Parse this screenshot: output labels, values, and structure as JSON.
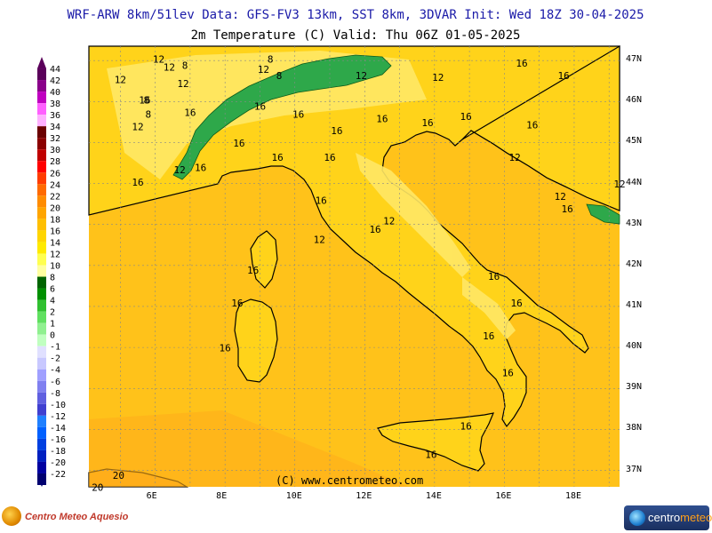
{
  "header": {
    "line1": "WRF-ARW 8km/51lev  Data: GFS-FV3 13km, SST 8km, 3DVAR  Init: Wed 18Z 30-04-2025",
    "line2": "2m Temperature (C)  Valid: Thu 06Z 01-05-2025"
  },
  "colorbar": {
    "levels": [
      {
        "label": "44",
        "color": "#5a005a"
      },
      {
        "label": "42",
        "color": "#8a008a"
      },
      {
        "label": "40",
        "color": "#c000c0"
      },
      {
        "label": "38",
        "color": "#ff60ff"
      },
      {
        "label": "36",
        "color": "#ffb0ff"
      },
      {
        "label": "34",
        "color": "#6b0000"
      },
      {
        "label": "32",
        "color": "#8b0000"
      },
      {
        "label": "30",
        "color": "#c00000"
      },
      {
        "label": "28",
        "color": "#ff0000"
      },
      {
        "label": "26",
        "color": "#ff3c00"
      },
      {
        "label": "24",
        "color": "#ff6a00"
      },
      {
        "label": "22",
        "color": "#ff8c00"
      },
      {
        "label": "20",
        "color": "#ffa500"
      },
      {
        "label": "18",
        "color": "#ffbf00"
      },
      {
        "label": "16",
        "color": "#ffd500"
      },
      {
        "label": "14",
        "color": "#ffea00"
      },
      {
        "label": "12",
        "color": "#ffff50"
      },
      {
        "label": "10",
        "color": "#ffffa0"
      },
      {
        "label": "8",
        "color": "#006400"
      },
      {
        "label": "6",
        "color": "#009000"
      },
      {
        "label": "4",
        "color": "#30c030"
      },
      {
        "label": "2",
        "color": "#60e060"
      },
      {
        "label": "1",
        "color": "#90f090"
      },
      {
        "label": "0",
        "color": "#c0ffc0"
      },
      {
        "label": "-1",
        "color": "#e0e0ff"
      },
      {
        "label": "-2",
        "color": "#c8c8ff"
      },
      {
        "label": "-4",
        "color": "#a0a0ff"
      },
      {
        "label": "-6",
        "color": "#8080f0"
      },
      {
        "label": "-8",
        "color": "#6060e0"
      },
      {
        "label": "-10",
        "color": "#4040d0"
      },
      {
        "label": "-12",
        "color": "#2080ff"
      },
      {
        "label": "-14",
        "color": "#0060ff"
      },
      {
        "label": "-16",
        "color": "#0040e0"
      },
      {
        "label": "-18",
        "color": "#0020c0"
      },
      {
        "label": "-20",
        "color": "#0000a0"
      },
      {
        "label": "-22",
        "color": "#000070"
      }
    ]
  },
  "map": {
    "lon_labels": [
      "6E",
      "8E",
      "10E",
      "12E",
      "14E",
      "16E",
      "18E"
    ],
    "lat_labels": [
      "47N",
      "46N",
      "45N",
      "44N",
      "43N",
      "42N",
      "41N",
      "40N",
      "39N",
      "38N",
      "37N"
    ],
    "watermark": "(C) www.centrometeo.com",
    "colors": {
      "sea": "#ffc21a",
      "land": "#ffd31a",
      "alps_green": "#2ea84a",
      "cold_yellow": "#ffe866",
      "warm_orange": "#ffae1a"
    },
    "contour_labels": [
      {
        "text": "12",
        "lon": 6.1,
        "lat": 46.95
      },
      {
        "text": "12",
        "lon": 5.0,
        "lat": 46.45
      },
      {
        "text": "12",
        "lon": 6.4,
        "lat": 46.75
      },
      {
        "text": "8",
        "lon": 6.85,
        "lat": 46.8
      },
      {
        "text": "8",
        "lon": 9.3,
        "lat": 46.95
      },
      {
        "text": "12",
        "lon": 9.1,
        "lat": 46.7
      },
      {
        "text": "8",
        "lon": 9.55,
        "lat": 46.55
      },
      {
        "text": "12",
        "lon": 6.8,
        "lat": 46.35
      },
      {
        "text": "16",
        "lon": 5.7,
        "lat": 45.95
      },
      {
        "text": "8",
        "lon": 5.75,
        "lat": 45.95
      },
      {
        "text": "12",
        "lon": 5.5,
        "lat": 45.3
      },
      {
        "text": "8",
        "lon": 5.8,
        "lat": 45.6
      },
      {
        "text": "16",
        "lon": 7.0,
        "lat": 45.65
      },
      {
        "text": "16",
        "lon": 9.0,
        "lat": 45.8
      },
      {
        "text": "16",
        "lon": 10.1,
        "lat": 45.6
      },
      {
        "text": "16",
        "lon": 11.2,
        "lat": 45.2
      },
      {
        "text": "12",
        "lon": 11.9,
        "lat": 46.55
      },
      {
        "text": "16",
        "lon": 12.5,
        "lat": 45.5
      },
      {
        "text": "16",
        "lon": 13.8,
        "lat": 45.4
      },
      {
        "text": "12",
        "lon": 14.1,
        "lat": 46.5
      },
      {
        "text": "16",
        "lon": 16.5,
        "lat": 46.85
      },
      {
        "text": "16",
        "lon": 17.7,
        "lat": 46.55
      },
      {
        "text": "16",
        "lon": 14.9,
        "lat": 45.55
      },
      {
        "text": "16",
        "lon": 16.8,
        "lat": 45.35
      },
      {
        "text": "12",
        "lon": 16.3,
        "lat": 44.55
      },
      {
        "text": "16",
        "lon": 8.4,
        "lat": 44.9
      },
      {
        "text": "12",
        "lon": 6.7,
        "lat": 44.25
      },
      {
        "text": "16",
        "lon": 7.3,
        "lat": 44.3
      },
      {
        "text": "16",
        "lon": 5.5,
        "lat": 43.95
      },
      {
        "text": "16",
        "lon": 9.5,
        "lat": 44.55
      },
      {
        "text": "16",
        "lon": 11.0,
        "lat": 44.55
      },
      {
        "text": "16",
        "lon": 10.75,
        "lat": 43.5
      },
      {
        "text": "12",
        "lon": 12.7,
        "lat": 43.0
      },
      {
        "text": "16",
        "lon": 12.3,
        "lat": 42.8
      },
      {
        "text": "12",
        "lon": 10.7,
        "lat": 42.55
      },
      {
        "text": "12",
        "lon": 17.6,
        "lat": 43.6
      },
      {
        "text": "16",
        "lon": 17.8,
        "lat": 43.3
      },
      {
        "text": "12",
        "lon": 19.3,
        "lat": 43.9
      },
      {
        "text": "16",
        "lon": 8.8,
        "lat": 41.8
      },
      {
        "text": "16",
        "lon": 8.35,
        "lat": 41.0
      },
      {
        "text": "16",
        "lon": 8.0,
        "lat": 39.9
      },
      {
        "text": "16",
        "lon": 15.7,
        "lat": 41.65
      },
      {
        "text": "16",
        "lon": 16.35,
        "lat": 41.0
      },
      {
        "text": "16",
        "lon": 15.55,
        "lat": 40.2
      },
      {
        "text": "16",
        "lon": 16.1,
        "lat": 39.3
      },
      {
        "text": "16",
        "lon": 14.9,
        "lat": 38.0
      },
      {
        "text": "16",
        "lon": 13.9,
        "lat": 37.3
      },
      {
        "text": "20",
        "lon": 4.95,
        "lat": 36.8
      },
      {
        "text": "20",
        "lon": 4.35,
        "lat": 36.5
      }
    ]
  }
}
